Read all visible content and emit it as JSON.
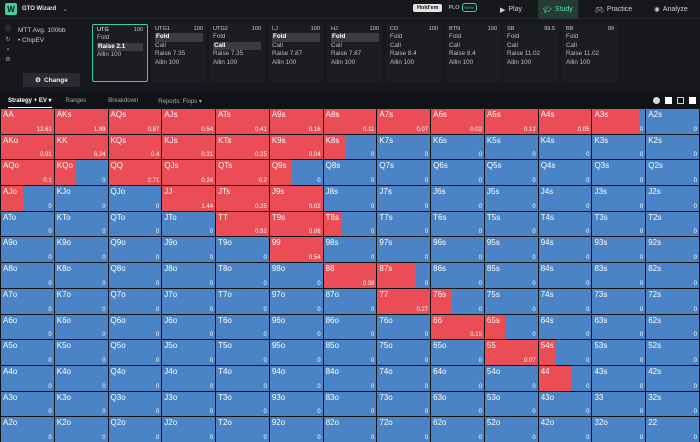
{
  "topbar": {
    "logo": "W",
    "brand": "GTO Wizard",
    "modes": [
      "Hold'em",
      "PLO"
    ],
    "new_badge": "NEW",
    "nav": {
      "play": "Play",
      "study": "Study",
      "practice": "Practice",
      "analyze": "Analyze"
    }
  },
  "header": {
    "sim_line1": "MTT  Avg. 100bb",
    "sim_line2": "• ChipEV",
    "change_label": "Change",
    "positions": [
      {
        "name": "UTG",
        "stack": "100",
        "actions": [
          "Fold",
          "Raise 2.1",
          "Allin 100"
        ],
        "selected": [
          1
        ],
        "active": true
      },
      {
        "name": "UTG1",
        "stack": "100",
        "actions": [
          "Fold",
          "Call",
          "Raise 7.35",
          "Allin 100"
        ],
        "selected": [
          0
        ]
      },
      {
        "name": "UTG2",
        "stack": "100",
        "actions": [
          "Fold",
          "Call",
          "Raise 7.35",
          "Allin 100"
        ],
        "selected": [
          1
        ]
      },
      {
        "name": "LJ",
        "stack": "100",
        "actions": [
          "Fold",
          "Call",
          "Raise 7.87",
          "Allin 100"
        ],
        "selected": [
          0
        ]
      },
      {
        "name": "HJ",
        "stack": "100",
        "actions": [
          "Fold",
          "Call",
          "Raise 7.87",
          "Allin 100"
        ],
        "selected": [
          0
        ]
      },
      {
        "name": "CO",
        "stack": "100",
        "actions": [
          "Fold",
          "Call",
          "Raise 8.4",
          "Allin 100"
        ],
        "selected": []
      },
      {
        "name": "BTN",
        "stack": "100",
        "actions": [
          "Fold",
          "Call",
          "Raise 8.4",
          "Allin 100"
        ],
        "selected": []
      },
      {
        "name": "SB",
        "stack": "99.5",
        "actions": [
          "Fold",
          "Call",
          "Raise 11.02",
          "Allin 100"
        ],
        "selected": []
      },
      {
        "name": "BB",
        "stack": "99",
        "actions": [
          "Fold",
          "Call",
          "Raise 11.02",
          "Allin 100"
        ],
        "selected": []
      }
    ]
  },
  "tabs": {
    "strategy": "Strategy + EV ▾",
    "ranges": "Ranges",
    "breakdown": "Breakdown",
    "reports": "Reports: Flops ▾"
  },
  "colors": {
    "raise": "#eb4d57",
    "fold": "#4a84c6"
  },
  "range_grid": [
    [
      [
        "AA",
        1,
        "12.61"
      ],
      [
        "AKs",
        1,
        "1.99"
      ],
      [
        "AQs",
        1,
        "0.87"
      ],
      [
        "AJs",
        1,
        "0.54"
      ],
      [
        "ATs",
        1,
        "0.41"
      ],
      [
        "A9s",
        1,
        "0.16"
      ],
      [
        "A8s",
        1,
        "0.11"
      ],
      [
        "A7s",
        1,
        "0.07"
      ],
      [
        "A6s",
        1,
        "0.02"
      ],
      [
        "A5s",
        1,
        "0.12"
      ],
      [
        "A4s",
        1,
        "0.05"
      ],
      [
        "A3s",
        0.91,
        "0"
      ],
      [
        "A2s",
        0,
        "0"
      ]
    ],
    [
      [
        "AKo",
        1,
        "0.91"
      ],
      [
        "KK",
        1,
        "6.24"
      ],
      [
        "KQs",
        1,
        "0.4"
      ],
      [
        "KJs",
        1,
        "0.31"
      ],
      [
        "KTs",
        1,
        "0.25"
      ],
      [
        "K9s",
        1,
        "0.04"
      ],
      [
        "K8s",
        0.42,
        "0"
      ],
      [
        "K7s",
        0,
        "0"
      ],
      [
        "K6s",
        0,
        "0"
      ],
      [
        "K5s",
        0,
        "0"
      ],
      [
        "K4s",
        0,
        "0"
      ],
      [
        "K3s",
        0,
        "0"
      ],
      [
        "K2s",
        0,
        "0"
      ]
    ],
    [
      [
        "AQo",
        1,
        "0.1"
      ],
      [
        "KQo",
        0.38,
        "0"
      ],
      [
        "QQ",
        1,
        "2.71"
      ],
      [
        "QJs",
        1,
        "0.24"
      ],
      [
        "QTs",
        1,
        "0.2"
      ],
      [
        "Q9s",
        0.42,
        "0"
      ],
      [
        "Q8s",
        0,
        "0"
      ],
      [
        "Q7s",
        0,
        "0"
      ],
      [
        "Q6s",
        0,
        "0"
      ],
      [
        "Q5s",
        0,
        "0"
      ],
      [
        "Q4s",
        0,
        "0"
      ],
      [
        "Q3s",
        0,
        "0"
      ],
      [
        "Q2s",
        0,
        "0"
      ]
    ],
    [
      [
        "AJo",
        0.42,
        "0"
      ],
      [
        "KJo",
        0,
        "0"
      ],
      [
        "QJo",
        0,
        "0"
      ],
      [
        "JJ",
        1,
        "1.44"
      ],
      [
        "JTs",
        1,
        "0.25"
      ],
      [
        "J9s",
        1,
        "0.02"
      ],
      [
        "J8s",
        0,
        "0"
      ],
      [
        "J7s",
        0,
        "0"
      ],
      [
        "J6s",
        0,
        "0"
      ],
      [
        "J5s",
        0,
        "0"
      ],
      [
        "J4s",
        0,
        "0"
      ],
      [
        "J3s",
        0,
        "0"
      ],
      [
        "J2s",
        0,
        "0"
      ]
    ],
    [
      [
        "ATo",
        0,
        "0"
      ],
      [
        "KTo",
        0,
        "0"
      ],
      [
        "QTo",
        0,
        "0"
      ],
      [
        "JTo",
        0,
        "0"
      ],
      [
        "TT",
        1,
        "0.92"
      ],
      [
        "T9s",
        1,
        "0.06"
      ],
      [
        "T8s",
        0.35,
        "0"
      ],
      [
        "T7s",
        0,
        "0"
      ],
      [
        "T6s",
        0,
        "0"
      ],
      [
        "T5s",
        0,
        "0"
      ],
      [
        "T4s",
        0,
        "0"
      ],
      [
        "T3s",
        0,
        "0"
      ],
      [
        "T2s",
        0,
        "0"
      ]
    ],
    [
      [
        "A9o",
        0,
        "0"
      ],
      [
        "K9o",
        0,
        "0"
      ],
      [
        "Q9o",
        0,
        "0"
      ],
      [
        "J9o",
        0,
        "0"
      ],
      [
        "T9o",
        0,
        "0"
      ],
      [
        "99",
        1,
        "0.54"
      ],
      [
        "98s",
        0,
        "0"
      ],
      [
        "97s",
        0,
        "0"
      ],
      [
        "96s",
        0,
        "0"
      ],
      [
        "95s",
        0,
        "0"
      ],
      [
        "94s",
        0,
        "0"
      ],
      [
        "93s",
        0,
        "0"
      ],
      [
        "92s",
        0,
        "0"
      ]
    ],
    [
      [
        "A8o",
        0,
        "0"
      ],
      [
        "K8o",
        0,
        "0"
      ],
      [
        "Q8o",
        0,
        "0"
      ],
      [
        "J8o",
        0,
        "0"
      ],
      [
        "T8o",
        0,
        "0"
      ],
      [
        "98o",
        0,
        "0"
      ],
      [
        "88",
        1,
        "0.38"
      ],
      [
        "87s",
        0.72,
        "0"
      ],
      [
        "86s",
        0,
        "0"
      ],
      [
        "85s",
        0,
        "0"
      ],
      [
        "84s",
        0,
        "0"
      ],
      [
        "83s",
        0,
        "0"
      ],
      [
        "82s",
        0,
        "0"
      ]
    ],
    [
      [
        "A7o",
        0,
        "0"
      ],
      [
        "K7o",
        0,
        "0"
      ],
      [
        "Q7o",
        0,
        "0"
      ],
      [
        "J7o",
        0,
        "0"
      ],
      [
        "T7o",
        0,
        "0"
      ],
      [
        "97o",
        0,
        "0"
      ],
      [
        "87o",
        0,
        "0"
      ],
      [
        "77",
        1,
        "0.27"
      ],
      [
        "76s",
        0.4,
        "0"
      ],
      [
        "75s",
        0,
        "0"
      ],
      [
        "74s",
        0,
        "0"
      ],
      [
        "73s",
        0,
        "0"
      ],
      [
        "72s",
        0,
        "0"
      ]
    ],
    [
      [
        "A6o",
        0,
        "0"
      ],
      [
        "K6o",
        0,
        "0"
      ],
      [
        "Q6o",
        0,
        "0"
      ],
      [
        "J6o",
        0,
        "0"
      ],
      [
        "T6o",
        0,
        "0"
      ],
      [
        "96o",
        0,
        "0"
      ],
      [
        "86o",
        0,
        "0"
      ],
      [
        "76o",
        0,
        "0"
      ],
      [
        "66",
        1,
        "0.15"
      ],
      [
        "65s",
        0.38,
        "0"
      ],
      [
        "64s",
        0,
        "0"
      ],
      [
        "63s",
        0,
        "0"
      ],
      [
        "62s",
        0,
        "0"
      ]
    ],
    [
      [
        "A5o",
        0,
        "0"
      ],
      [
        "K5o",
        0,
        "0"
      ],
      [
        "Q5o",
        0,
        "0"
      ],
      [
        "J5o",
        0,
        "0"
      ],
      [
        "T5o",
        0,
        "0"
      ],
      [
        "95o",
        0,
        "0"
      ],
      [
        "85o",
        0,
        "0"
      ],
      [
        "75o",
        0,
        "0"
      ],
      [
        "65o",
        0,
        "0"
      ],
      [
        "55",
        1,
        "0.07"
      ],
      [
        "54s",
        0.32,
        "0"
      ],
      [
        "53s",
        0,
        "0"
      ],
      [
        "52s",
        0,
        "0"
      ]
    ],
    [
      [
        "A4o",
        0,
        "0"
      ],
      [
        "K4o",
        0,
        "0"
      ],
      [
        "Q4o",
        0,
        "0"
      ],
      [
        "J4o",
        0,
        "0"
      ],
      [
        "T4o",
        0,
        "0"
      ],
      [
        "94o",
        0,
        "0"
      ],
      [
        "84o",
        0,
        "0"
      ],
      [
        "74o",
        0,
        "0"
      ],
      [
        "64o",
        0,
        "0"
      ],
      [
        "54o",
        0,
        "0"
      ],
      [
        "44",
        0.62,
        "0"
      ],
      [
        "43s",
        0,
        "0"
      ],
      [
        "42s",
        0,
        "0"
      ]
    ],
    [
      [
        "A3o",
        0,
        "0"
      ],
      [
        "K3o",
        0,
        "0"
      ],
      [
        "Q3o",
        0,
        "0"
      ],
      [
        "J3o",
        0,
        "0"
      ],
      [
        "T3o",
        0,
        "0"
      ],
      [
        "93o",
        0,
        "0"
      ],
      [
        "83o",
        0,
        "0"
      ],
      [
        "73o",
        0,
        "0"
      ],
      [
        "63o",
        0,
        "0"
      ],
      [
        "53o",
        0,
        "0"
      ],
      [
        "43o",
        0,
        "0"
      ],
      [
        "33",
        0,
        "0"
      ],
      [
        "32s",
        0,
        "0"
      ]
    ],
    [
      [
        "A2o",
        0,
        "0"
      ],
      [
        "K2o",
        0,
        "0"
      ],
      [
        "Q2o",
        0,
        "0"
      ],
      [
        "J2o",
        0,
        "0"
      ],
      [
        "T2o",
        0,
        "0"
      ],
      [
        "92o",
        0,
        "0"
      ],
      [
        "82o",
        0,
        "0"
      ],
      [
        "72o",
        0,
        "0"
      ],
      [
        "62o",
        0,
        "0"
      ],
      [
        "52o",
        0,
        "0"
      ],
      [
        "42o",
        0,
        "0"
      ],
      [
        "32o",
        0,
        "0"
      ],
      [
        "22",
        0,
        "0"
      ]
    ]
  ]
}
